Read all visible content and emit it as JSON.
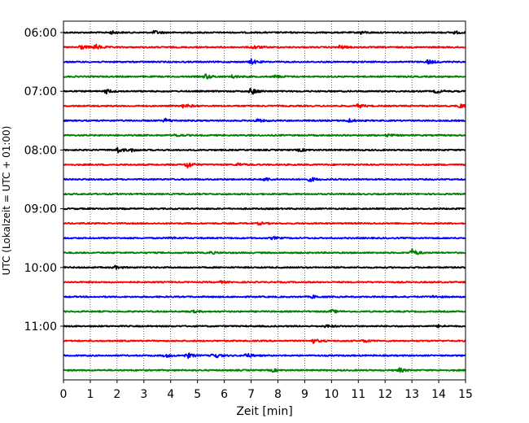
{
  "chart_data": {
    "type": "line",
    "chart_kind": "helicorder-seismogram",
    "xlabel": "Zeit  [min]",
    "ylabel": "UTC (Lokalzeit = UTC + 01:00)",
    "xlim": [
      0,
      15
    ],
    "x_ticks": [
      0,
      1,
      2,
      3,
      4,
      5,
      6,
      7,
      8,
      9,
      10,
      11,
      12,
      13,
      14,
      15
    ],
    "x_tick_labels": [
      "0",
      "1",
      "2",
      "3",
      "4",
      "5",
      "6",
      "7",
      "8",
      "9",
      "10",
      "11",
      "12",
      "13",
      "14",
      "15"
    ],
    "grid": "vertical-dotted",
    "trace_interval_min": 15,
    "start_time": "06:00",
    "y_tick_labels": [
      "06:00",
      "07:00",
      "08:00",
      "09:00",
      "10:00",
      "11:00"
    ],
    "colors": [
      "#000000",
      "#ff0000",
      "#0000ff",
      "#008000"
    ],
    "noise_amplitude": 0.25,
    "traces": [
      {
        "time": "06:00",
        "color": "#000000",
        "events": [
          [
            3.4,
            0.7
          ],
          [
            1.8,
            0.5
          ],
          [
            11.1,
            0.5
          ],
          [
            14.6,
            0.5
          ]
        ]
      },
      {
        "time": "06:15",
        "color": "#ff0000",
        "events": [
          [
            0.6,
            1.0
          ],
          [
            1.2,
            1.0
          ],
          [
            7.1,
            0.7
          ],
          [
            10.3,
            0.7
          ]
        ]
      },
      {
        "time": "06:30",
        "color": "#0000ff",
        "events": [
          [
            7.0,
            0.9
          ],
          [
            13.6,
            0.8
          ]
        ]
      },
      {
        "time": "06:45",
        "color": "#008000",
        "events": [
          [
            5.3,
            1.0
          ],
          [
            6.3,
            0.6
          ],
          [
            7.9,
            0.6
          ]
        ]
      },
      {
        "time": "07:00",
        "color": "#000000",
        "events": [
          [
            1.6,
            0.8
          ],
          [
            7.0,
            1.3
          ],
          [
            13.9,
            0.7
          ]
        ]
      },
      {
        "time": "07:15",
        "color": "#ff0000",
        "events": [
          [
            4.5,
            0.9
          ],
          [
            11.0,
            0.7
          ],
          [
            14.8,
            0.8
          ]
        ]
      },
      {
        "time": "07:30",
        "color": "#0000ff",
        "events": [
          [
            3.8,
            0.7
          ],
          [
            7.2,
            0.7
          ],
          [
            10.6,
            0.8
          ]
        ]
      },
      {
        "time": "07:45",
        "color": "#008000",
        "events": [
          [
            4.2,
            0.5
          ],
          [
            12.1,
            0.5
          ]
        ]
      },
      {
        "time": "08:00",
        "color": "#000000",
        "events": [
          [
            2.0,
            1.1
          ],
          [
            2.5,
            0.6
          ],
          [
            8.8,
            0.5
          ]
        ]
      },
      {
        "time": "08:15",
        "color": "#ff0000",
        "events": [
          [
            4.6,
            1.3
          ],
          [
            6.5,
            0.6
          ]
        ]
      },
      {
        "time": "08:30",
        "color": "#0000ff",
        "events": [
          [
            7.5,
            0.7
          ],
          [
            9.2,
            0.8
          ]
        ]
      },
      {
        "time": "08:45",
        "color": "#008000",
        "events": []
      },
      {
        "time": "09:00",
        "color": "#000000",
        "events": []
      },
      {
        "time": "09:15",
        "color": "#ff0000",
        "events": [
          [
            7.3,
            0.5
          ]
        ]
      },
      {
        "time": "09:30",
        "color": "#0000ff",
        "events": [
          [
            4.0,
            0.4
          ],
          [
            7.8,
            0.4
          ]
        ]
      },
      {
        "time": "09:45",
        "color": "#008000",
        "events": [
          [
            13.0,
            1.4
          ],
          [
            5.5,
            0.4
          ]
        ]
      },
      {
        "time": "10:00",
        "color": "#000000",
        "events": [
          [
            1.9,
            0.6
          ]
        ]
      },
      {
        "time": "10:15",
        "color": "#ff0000",
        "events": [
          [
            5.8,
            0.4
          ]
        ]
      },
      {
        "time": "10:30",
        "color": "#0000ff",
        "events": [
          [
            9.3,
            0.5
          ],
          [
            13.8,
            0.4
          ]
        ]
      },
      {
        "time": "10:45",
        "color": "#008000",
        "events": [
          [
            10.0,
            0.6
          ],
          [
            4.8,
            0.4
          ]
        ]
      },
      {
        "time": "11:00",
        "color": "#000000",
        "events": [
          [
            9.8,
            0.5
          ],
          [
            14.0,
            0.4
          ]
        ]
      },
      {
        "time": "11:15",
        "color": "#ff0000",
        "events": [
          [
            9.3,
            0.8
          ],
          [
            11.2,
            0.5
          ]
        ]
      },
      {
        "time": "11:30",
        "color": "#0000ff",
        "events": [
          [
            4.6,
            1.1
          ],
          [
            5.6,
            1.2
          ],
          [
            6.8,
            0.9
          ],
          [
            3.8,
            0.6
          ]
        ]
      },
      {
        "time": "11:45",
        "color": "#008000",
        "events": [
          [
            12.5,
            0.9
          ],
          [
            7.8,
            0.5
          ]
        ]
      }
    ]
  }
}
